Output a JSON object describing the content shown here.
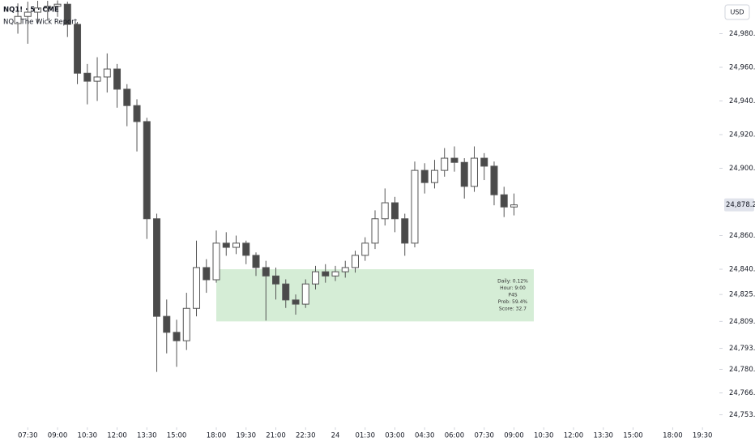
{
  "chart_data": {
    "type": "candlestick",
    "title": "NQ1! · 5 · CME",
    "subtitle": "NQ - The Wick Report",
    "currency": "USD",
    "color_up": "#ffffff",
    "color_down": "#4a4a4a",
    "color_border": "#555555",
    "x": [
      -0.5,
      0,
      0.5,
      1,
      1.5,
      2,
      2.5,
      3,
      3.5,
      4,
      4.5,
      5,
      5.5,
      6,
      6.5,
      7,
      7.5,
      8,
      8.5,
      9,
      9.5,
      10,
      10.5,
      11,
      11.5,
      12,
      12.5,
      13,
      13.5,
      14,
      14.5,
      15,
      15.5,
      16,
      16.5,
      17,
      17.5,
      18,
      18.5,
      19,
      19.5,
      20,
      20.5,
      21,
      21.5,
      22,
      22.5,
      23,
      23.5,
      24,
      24.5
    ],
    "open": [
      24986,
      24990.25,
      24992.75,
      24995.25,
      24996.25,
      24997.5,
      24985.5,
      24956.5,
      24951.75,
      24954.25,
      24959,
      24947,
      24937.25,
      24927.75,
      24870,
      24812,
      24802.5,
      24797.5,
      24816.75,
      24841,
      24833.75,
      24855.5,
      24853,
      24855.5,
      24848.25,
      24841,
      24836,
      24831.25,
      24821.75,
      24819.25,
      24831.25,
      24838.5,
      24836,
      24838.5,
      24841,
      24848.25,
      24855.5,
      24870,
      24879.5,
      24870,
      24855.5,
      24898.75,
      24891.5,
      24898.75,
      24906,
      24903.5,
      24889.25,
      24906,
      24901.25,
      24884.25,
      24877
    ],
    "high": [
      24998,
      24999,
      24999.5,
      24999.5,
      24999.75,
      24999,
      24987,
      24962,
      24966,
      24968.25,
      24962,
      24950,
      24941,
      24930,
      24873,
      24822,
      24810,
      24826,
      24857,
      24846,
      24863,
      24862,
      24860,
      24857,
      24850,
      24845,
      24841,
      24834,
      24825,
      24834,
      24842,
      24843,
      24842,
      24845,
      24851,
      24859,
      24875,
      24888,
      24883,
      24873,
      24904,
      24903,
      24905,
      24912,
      24913,
      24906,
      24913,
      24909,
      24904,
      24889,
      24885
    ],
    "low": [
      24980,
      24974,
      24986,
      24988,
      24990,
      24978,
      24950,
      24938,
      24940,
      24945,
      24936,
      24925,
      24910,
      24858,
      24779,
      24790,
      24782,
      24792,
      24812,
      24826,
      24832,
      24848,
      24849,
      24843,
      24836,
      24809.5,
      24822,
      24817,
      24813,
      24817,
      24828,
      24832,
      24833,
      24835,
      24838,
      24845,
      24852,
      24866,
      24862,
      24848,
      24853,
      24885,
      24888,
      24895,
      24898,
      24882,
      24886,
      24893,
      24878,
      24871,
      24872
    ],
    "close": [
      24990.25,
      24992.75,
      24995.25,
      24996.25,
      24997.5,
      24985.5,
      24956.5,
      24951.75,
      24954.25,
      24959,
      24947,
      24937.25,
      24927.75,
      24870,
      24812,
      24802.5,
      24797.5,
      24816.75,
      24841,
      24833.75,
      24855.5,
      24853,
      24855.5,
      24848.25,
      24841,
      24836,
      24831.25,
      24821.75,
      24819.25,
      24831.25,
      24838.5,
      24836,
      24838.5,
      24841,
      24848.25,
      24855.5,
      24870,
      24879.5,
      24870,
      24855.5,
      24898.75,
      24891.5,
      24898.75,
      24906,
      24903.5,
      24889.25,
      24906,
      24901.25,
      24884.25,
      24877,
      24878.25
    ],
    "xlim": [
      -1.4,
      34.85
    ],
    "ylim": [
      24747,
      25000
    ],
    "xticks": [
      {
        "value": 0,
        "label": "07:30"
      },
      {
        "value": 1.5,
        "label": "09:00"
      },
      {
        "value": 3,
        "label": "10:30"
      },
      {
        "value": 4.5,
        "label": "12:00"
      },
      {
        "value": 6,
        "label": "13:30"
      },
      {
        "value": 7.5,
        "label": "15:00"
      },
      {
        "value": 9.5,
        "label": "18:00"
      },
      {
        "value": 11,
        "label": "19:30"
      },
      {
        "value": 12.5,
        "label": "21:00"
      },
      {
        "value": 14,
        "label": "22:30"
      },
      {
        "value": 15.5,
        "label": "24"
      },
      {
        "value": 17,
        "label": "01:30"
      },
      {
        "value": 18.5,
        "label": "03:00"
      },
      {
        "value": 20,
        "label": "04:30"
      },
      {
        "value": 21.5,
        "label": "06:00"
      },
      {
        "value": 23,
        "label": "07:30"
      },
      {
        "value": 24.5,
        "label": "09:00"
      },
      {
        "value": 26,
        "label": "10:30"
      },
      {
        "value": 27.5,
        "label": "12:00"
      },
      {
        "value": 29,
        "label": "13:30"
      },
      {
        "value": 30.5,
        "label": "15:00"
      },
      {
        "value": 32.5,
        "label": "18:00"
      },
      {
        "value": 34,
        "label": "19:30"
      }
    ],
    "yticks": [
      {
        "value": 24980,
        "label": "24,980.00"
      },
      {
        "value": 24960,
        "label": "24,960.00"
      },
      {
        "value": 24940,
        "label": "24,940.00"
      },
      {
        "value": 24920,
        "label": "24,920.00"
      },
      {
        "value": 24900,
        "label": "24,900.00"
      },
      {
        "value": 24860,
        "label": "24,860.00"
      },
      {
        "value": 24840,
        "label": "24,840.00"
      },
      {
        "value": 24825,
        "label": "24,825.00"
      },
      {
        "value": 24809,
        "label": "24,809.00"
      },
      {
        "value": 24793,
        "label": "24,793.00"
      },
      {
        "value": 24780.5,
        "label": "24,780.50"
      },
      {
        "value": 24766.5,
        "label": "24,766.50"
      },
      {
        "value": 24753.5,
        "label": "24,753.50"
      }
    ],
    "last_price": {
      "value": 24878.25,
      "label": "24,878.25"
    },
    "zone": {
      "x": [
        9.5,
        25.5
      ],
      "y": [
        24809,
        24840
      ],
      "color": "#d5edd6",
      "lines": [
        "Daily: 0.12%",
        "Hour: 9:00",
        "P4S",
        "Prob: 59.4%",
        "Score: 32.7"
      ]
    }
  }
}
